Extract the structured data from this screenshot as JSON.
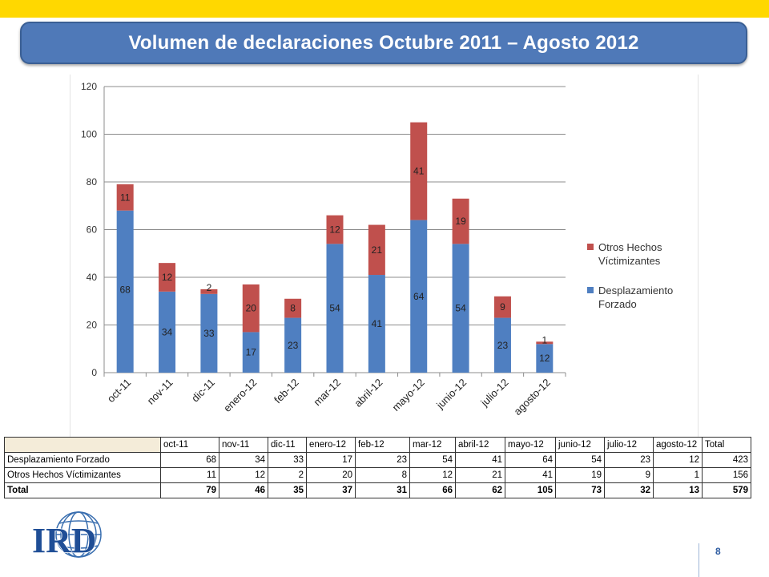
{
  "title": "Volumen de declaraciones Octubre 2011 – Agosto 2012",
  "colors": {
    "desplazamiento": "#4f7fc1",
    "otros": "#c0504d",
    "banner": "#ffd800",
    "title_bg": "#4f79b8"
  },
  "chart_data": {
    "type": "bar",
    "stacked": true,
    "categories": [
      "oct-11",
      "nov-11",
      "dic-11",
      "enero-12",
      "feb-12",
      "mar-12",
      "abril-12",
      "mayo-12",
      "junio-12",
      "julio-12",
      "agosto-12"
    ],
    "series": [
      {
        "name": "Desplazamiento Forzado",
        "values": [
          68,
          34,
          33,
          17,
          23,
          54,
          41,
          64,
          54,
          23,
          12
        ]
      },
      {
        "name": "Otros Hechos Víctimizantes",
        "values": [
          11,
          12,
          2,
          20,
          8,
          12,
          21,
          41,
          19,
          9,
          1
        ]
      }
    ],
    "ylim": [
      0,
      120
    ],
    "yticks": [
      0,
      20,
      40,
      60,
      80,
      100,
      120
    ],
    "grid": true,
    "legend_position": "right"
  },
  "legend": [
    {
      "label": "Otros Hechos Víctimizantes",
      "series": "otros"
    },
    {
      "label": "Desplazamiento Forzado",
      "series": "desplazamiento"
    }
  ],
  "table": {
    "headers": [
      "oct-11",
      "nov-11",
      "dic-11",
      "enero-12",
      "feb-12",
      "mar-12",
      "abril-12",
      "mayo-12",
      "junio-12",
      "julio-12",
      "agosto-12",
      "Total"
    ],
    "rows": [
      {
        "label": "Desplazamiento Forzado",
        "values": [
          "68",
          "34",
          "33",
          "17",
          "23",
          "54",
          "41",
          "64",
          "54",
          "23",
          "12",
          "423"
        ]
      },
      {
        "label": "Otros Hechos Víctimizantes",
        "values": [
          "11",
          "12",
          "2",
          "20",
          "8",
          "12",
          "21",
          "41",
          "19",
          "9",
          "1",
          "156"
        ]
      },
      {
        "label": "Total",
        "values": [
          "79",
          "46",
          "35",
          "37",
          "31",
          "66",
          "62",
          "105",
          "73",
          "32",
          "13",
          "579"
        ]
      }
    ]
  },
  "logo_text": "IRD",
  "page_number": "8"
}
